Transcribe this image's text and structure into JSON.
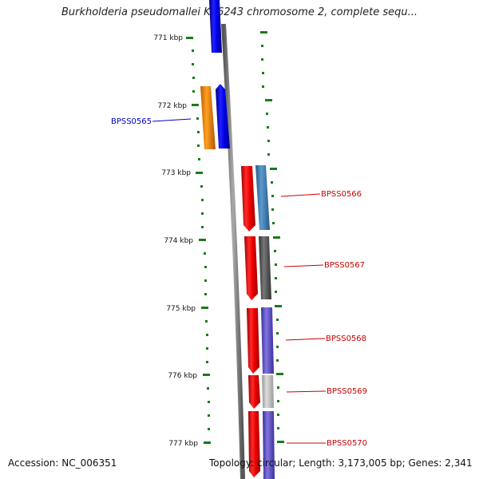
{
  "title": "Burkholderia pseudomallei K96243 chromosome 2, complete sequ...",
  "footer": {
    "accession": "Accession: NC_006351",
    "topology": "Topology: circular; Length: 3,173,005 bp; Genes: 2,341"
  },
  "ticks": [
    "771 kbp",
    "772 kbp",
    "773 kbp",
    "774 kbp",
    "775 kbp",
    "776 kbp",
    "777 kbp"
  ],
  "gene_labels": [
    {
      "text": "BPSS0565",
      "color": "#0000cc"
    },
    {
      "text": "BPSS0566",
      "color": "#cc0000"
    },
    {
      "text": "BPSS0567",
      "color": "#cc0000"
    },
    {
      "text": "BPSS0568",
      "color": "#cc0000"
    },
    {
      "text": "BPSS0569",
      "color": "#cc0000"
    },
    {
      "text": "BPSS0570",
      "color": "#cc0000"
    }
  ],
  "colors": {
    "backbone": "#8a8a8a",
    "tick_mark": "#1a7a1a",
    "forward_strand": "#0000ee",
    "reverse_strand": "#ee0000",
    "cog_orange": "#ff8c00",
    "cog_steelblue": "#4682b4",
    "cog_gray": "#555555",
    "cog_slate": "#6a5acd",
    "cog_lightgray": "#bbbbbb"
  }
}
